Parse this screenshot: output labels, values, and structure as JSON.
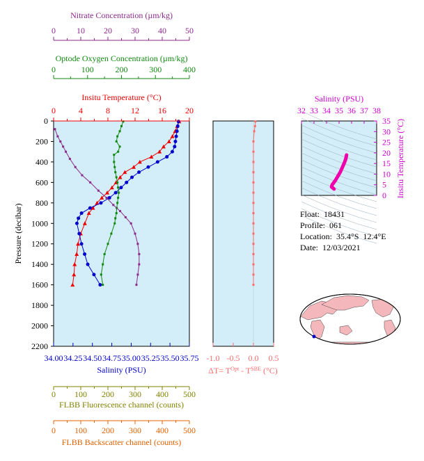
{
  "info": {
    "float_label": "Float:",
    "float_value": "18431",
    "profile_label": "Profile:",
    "profile_value": "061",
    "location_label": "Location:",
    "location_value": "35.4°S  12.4°E",
    "date_label": "Date:",
    "date_value": "12/03/2021"
  },
  "colors": {
    "panel_bg": "#d3eef8",
    "temperature": "#ee0000",
    "salinity": "#0000cc",
    "nitrate": "#8b2a8b",
    "oxygen": "#118811",
    "dt": "#ff6b6b",
    "ts_line": "#ee00aa",
    "fluorescence": "#808000",
    "backscatter": "#e06000",
    "ts_axes": "#cc00cc"
  },
  "chart_data": [
    {
      "id": "profile",
      "type": "line",
      "ylabel": "Pressure (decibar)",
      "ylim": [
        2200,
        0
      ],
      "yticks": [
        "0",
        "200",
        "400",
        "600",
        "800",
        "1000",
        "1200",
        "1400",
        "1600",
        "1800",
        "2000",
        "2200"
      ],
      "axes": {
        "nitrate": {
          "label": "Nitrate Concentration (µm/kg)",
          "lim": [
            0,
            50
          ],
          "ticks": [
            "0",
            "10",
            "20",
            "30",
            "40",
            "50"
          ]
        },
        "oxygen": {
          "label": "Optode Oxygen Concentration (µm/kg)",
          "lim": [
            0,
            400
          ],
          "ticks": [
            "0",
            "100",
            "200",
            "300",
            "400"
          ]
        },
        "temperature": {
          "label": "Insitu Temperature (°C)",
          "lim": [
            0,
            20
          ],
          "ticks": [
            "0",
            "4",
            "8",
            "12",
            "16",
            "20"
          ]
        },
        "salinity": {
          "label": "Salinity (PSU)",
          "lim": [
            34.0,
            35.75
          ],
          "ticks": [
            "34.00",
            "34.25",
            "34.50",
            "34.75",
            "35.00",
            "35.25",
            "35.50",
            "35.75"
          ]
        },
        "fluorescence": {
          "label": "FLBB Fluorescence channel (counts)",
          "lim": [
            0,
            500
          ],
          "ticks": [
            "0",
            "100",
            "200",
            "300",
            "400",
            "500"
          ]
        },
        "backscatter": {
          "label": "FLBB Backscatter channel (counts)",
          "lim": [
            0,
            500
          ],
          "ticks": [
            "0",
            "100",
            "200",
            "300",
            "400",
            "500"
          ]
        }
      },
      "series": [
        {
          "key": "temperature",
          "marker": "triangle",
          "points": [
            [
              18.5,
              5
            ],
            [
              18.2,
              50
            ],
            [
              17.9,
              100
            ],
            [
              17.5,
              150
            ],
            [
              17.0,
              200
            ],
            [
              16.2,
              250
            ],
            [
              15.6,
              300
            ],
            [
              14.4,
              350
            ],
            [
              12.7,
              400
            ],
            [
              11.8,
              450
            ],
            [
              10.5,
              500
            ],
            [
              9.8,
              550
            ],
            [
              9.2,
              600
            ],
            [
              8.6,
              650
            ],
            [
              7.9,
              700
            ],
            [
              7.1,
              750
            ],
            [
              6.4,
              800
            ],
            [
              5.8,
              850
            ],
            [
              5.2,
              900
            ],
            [
              4.6,
              1000
            ],
            [
              4.0,
              1100
            ],
            [
              3.6,
              1200
            ],
            [
              3.4,
              1300
            ],
            [
              3.1,
              1400
            ],
            [
              3.0,
              1500
            ],
            [
              2.8,
              1600
            ]
          ]
        },
        {
          "key": "salinity",
          "marker": "circle",
          "points": [
            [
              35.61,
              5
            ],
            [
              35.6,
              50
            ],
            [
              35.59,
              100
            ],
            [
              35.58,
              150
            ],
            [
              35.57,
              200
            ],
            [
              35.56,
              250
            ],
            [
              35.53,
              300
            ],
            [
              35.46,
              350
            ],
            [
              35.34,
              400
            ],
            [
              35.22,
              450
            ],
            [
              35.1,
              500
            ],
            [
              35.01,
              550
            ],
            [
              34.94,
              600
            ],
            [
              34.87,
              650
            ],
            [
              34.8,
              700
            ],
            [
              34.72,
              750
            ],
            [
              34.61,
              800
            ],
            [
              34.47,
              850
            ],
            [
              34.36,
              900
            ],
            [
              34.32,
              950
            ],
            [
              34.3,
              1000
            ],
            [
              34.33,
              1100
            ],
            [
              34.36,
              1200
            ],
            [
              34.4,
              1300
            ],
            [
              34.44,
              1400
            ],
            [
              34.52,
              1500
            ],
            [
              34.6,
              1600
            ]
          ]
        },
        {
          "key": "oxygen",
          "marker": "square",
          "points": [
            [
              205,
              5
            ],
            [
              200,
              50
            ],
            [
              195,
              100
            ],
            [
              188,
              150
            ],
            [
              185,
              200
            ],
            [
              195,
              250
            ],
            [
              190,
              300
            ],
            [
              178,
              330
            ],
            [
              178,
              400
            ],
            [
              180,
              450
            ],
            [
              182,
              500
            ],
            [
              185,
              550
            ],
            [
              188,
              600
            ],
            [
              190,
              650
            ],
            [
              192,
              700
            ],
            [
              190,
              750
            ],
            [
              188,
              800
            ],
            [
              186,
              850
            ],
            [
              185,
              900
            ],
            [
              182,
              950
            ],
            [
              180,
              1000
            ],
            [
              170,
              1100
            ],
            [
              160,
              1200
            ],
            [
              150,
              1300
            ],
            [
              145,
              1400
            ],
            [
              140,
              1500
            ],
            [
              145,
              1600
            ]
          ]
        },
        {
          "key": "nitrate",
          "marker": "square",
          "points": [
            [
              0.5,
              80
            ],
            [
              1.5,
              150
            ],
            [
              2.5,
              200
            ],
            [
              3.5,
              250
            ],
            [
              4.5,
              300
            ],
            [
              6.0,
              370
            ],
            [
              8.0,
              450
            ],
            [
              10.5,
              530
            ],
            [
              13.5,
              600
            ],
            [
              16.5,
              680
            ],
            [
              19.5,
              750
            ],
            [
              22.0,
              820
            ],
            [
              24.5,
              880
            ],
            [
              26.5,
              940
            ],
            [
              28.5,
              1000
            ],
            [
              30.0,
              1100
            ],
            [
              31.0,
              1200
            ],
            [
              31.5,
              1300
            ],
            [
              31.5,
              1400
            ],
            [
              31.0,
              1500
            ],
            [
              30.5,
              1600
            ]
          ]
        }
      ]
    },
    {
      "id": "delta_t",
      "type": "line",
      "xlabel": "ΔT= T",
      "xlabel_sup1": "Opt",
      "xlabel_mid": " - T",
      "xlabel_sup2": "SBE",
      "xlabel_end": " (°C)",
      "xlim": [
        -1.0,
        0.5
      ],
      "xticks": [
        "-1.0",
        "-0.5",
        "0.0",
        "0.5"
      ],
      "points": [
        [
          0.05,
          5
        ],
        [
          0.04,
          50
        ],
        [
          0.02,
          100
        ],
        [
          0.0,
          200
        ],
        [
          0.0,
          300
        ],
        [
          0.0,
          400
        ],
        [
          0.0,
          500
        ],
        [
          0.0,
          600
        ],
        [
          0.0,
          700
        ],
        [
          0.0,
          800
        ],
        [
          0.0,
          900
        ],
        [
          0.0,
          1000
        ],
        [
          0.0,
          1100
        ],
        [
          0.0,
          1200
        ],
        [
          0.0,
          1300
        ],
        [
          0.0,
          1400
        ],
        [
          0.0,
          1500
        ],
        [
          0.0,
          1600
        ]
      ]
    },
    {
      "id": "ts",
      "type": "line",
      "xlabel": "Salinity (PSU)",
      "ylabel": "Insitu Temperature (°C)",
      "xlim": [
        32,
        38
      ],
      "ylim": [
        0,
        35
      ],
      "xticks": [
        "32",
        "33",
        "34",
        "35",
        "36",
        "37",
        "38"
      ],
      "yticks": [
        "0",
        "5",
        "10",
        "15",
        "20",
        "25",
        "30",
        "35"
      ],
      "points": [
        [
          34.6,
          3.0
        ],
        [
          34.4,
          4.0
        ],
        [
          34.45,
          5.0
        ],
        [
          34.7,
          7.0
        ],
        [
          34.9,
          9.0
        ],
        [
          35.1,
          11.0
        ],
        [
          35.25,
          13.0
        ],
        [
          35.4,
          15.0
        ],
        [
          35.5,
          16.5
        ],
        [
          35.55,
          17.5
        ],
        [
          35.58,
          18.5
        ],
        [
          35.6,
          19.0
        ]
      ]
    }
  ]
}
